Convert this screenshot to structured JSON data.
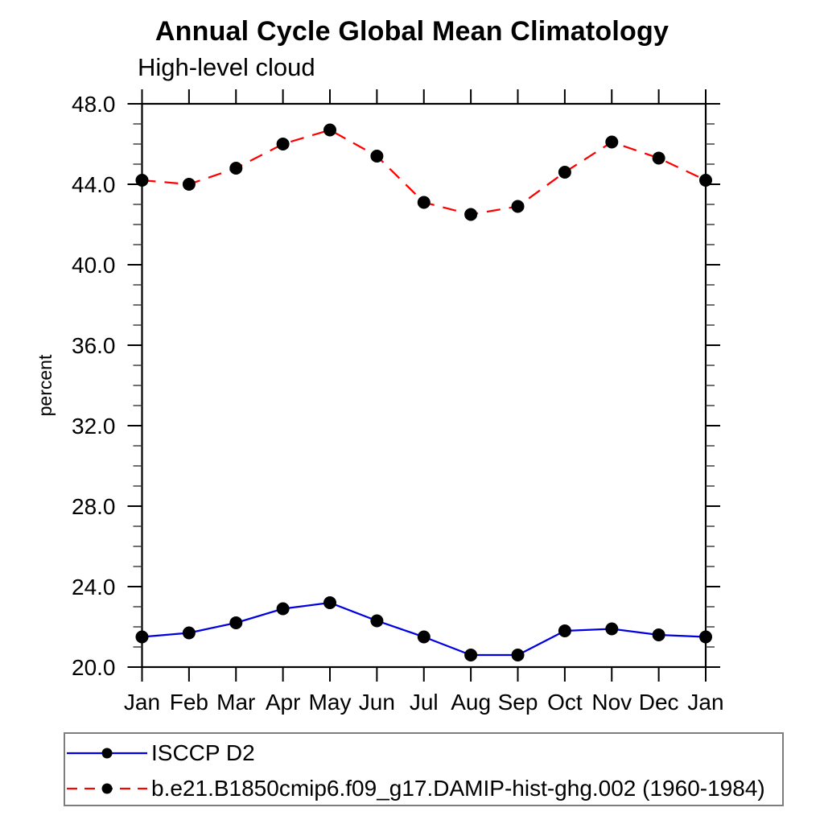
{
  "chart_data": {
    "type": "line",
    "title": "Annual Cycle Global Mean Climatology",
    "subtitle": "High-level cloud",
    "xlabel": "",
    "ylabel": "percent",
    "categories": [
      "Jan",
      "Feb",
      "Mar",
      "Apr",
      "May",
      "Jun",
      "Jul",
      "Aug",
      "Sep",
      "Oct",
      "Nov",
      "Dec",
      "Jan"
    ],
    "series": [
      {
        "name": "ISCCP D2",
        "color": "#0000E0",
        "style": "solid",
        "marker": "black-filled-circle",
        "values": [
          21.5,
          21.7,
          22.2,
          22.9,
          23.2,
          22.3,
          21.5,
          20.6,
          20.6,
          21.8,
          21.9,
          21.6,
          21.5
        ]
      },
      {
        "name": "b.e21.B1850cmip6.f09_g17.DAMIP-hist-ghg.002 (1960-1984)",
        "color": "#FF0000",
        "style": "dashed",
        "marker": "black-filled-circle",
        "values": [
          44.2,
          44.0,
          44.8,
          46.0,
          46.7,
          45.4,
          43.1,
          42.5,
          42.9,
          44.6,
          46.1,
          45.3,
          44.2
        ]
      }
    ],
    "ylim": [
      20.0,
      48.0
    ],
    "yticks": [
      20,
      24,
      28,
      32,
      36,
      40,
      44,
      48
    ],
    "ytick_labels": [
      "20.0",
      "24.0",
      "28.0",
      "32.0",
      "36.0",
      "40.0",
      "44.0",
      "48.0"
    ],
    "yminor_step": 1,
    "grid": false,
    "legend_position": "bottom-left-box",
    "tick_direction": "outward"
  }
}
